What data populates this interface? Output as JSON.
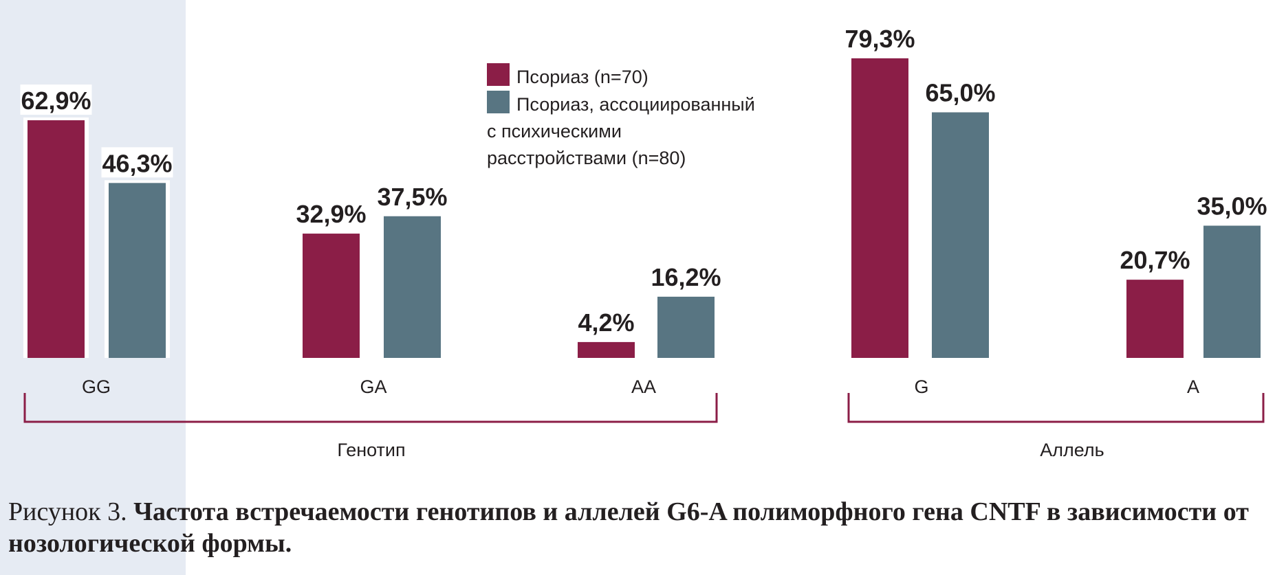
{
  "chart_data": {
    "type": "bar",
    "categories": [
      "GG",
      "GA",
      "AA",
      "G",
      "A"
    ],
    "groups": [
      {
        "label": "Генотип",
        "categories": [
          "GG",
          "GA",
          "AA"
        ]
      },
      {
        "label": "Аллель",
        "categories": [
          "G",
          "A"
        ]
      }
    ],
    "series": [
      {
        "name": "Псориаз (n=70)",
        "color": "#8b1e47",
        "values": [
          62.9,
          32.9,
          4.2,
          79.3,
          20.7
        ],
        "labels": [
          "62,9%",
          "32,9%",
          "4,2%",
          "79,3%",
          "20,7%"
        ]
      },
      {
        "name": "Псориаз, ассоциированный с психическими расстройствами (n=80)",
        "color": "#587582",
        "values": [
          46.3,
          37.5,
          16.2,
          65.0,
          35.0
        ],
        "labels": [
          "46,3%",
          "37,5%",
          "16,2%",
          "65,0%",
          "35,0%"
        ]
      }
    ],
    "ylim": [
      0,
      100
    ],
    "grid": false,
    "legend_position": "top-center"
  },
  "legend": {
    "items": [
      {
        "lines": [
          "Псориаз (n=70)"
        ],
        "color": "#8b1e47"
      },
      {
        "lines": [
          "Псориаз, ассоциированный",
          "с психическими",
          "расстройствами (n=80)"
        ],
        "color": "#587582"
      }
    ]
  },
  "caption": {
    "prefix": "Рисунок 3. ",
    "text": "Частота встречаемости генотипов и аллелей G6-A полиморфного гена CNTF в зависимости от нозологической формы."
  },
  "colors": {
    "panel": "#e6ebf3",
    "bracket": "#8b1e47"
  }
}
